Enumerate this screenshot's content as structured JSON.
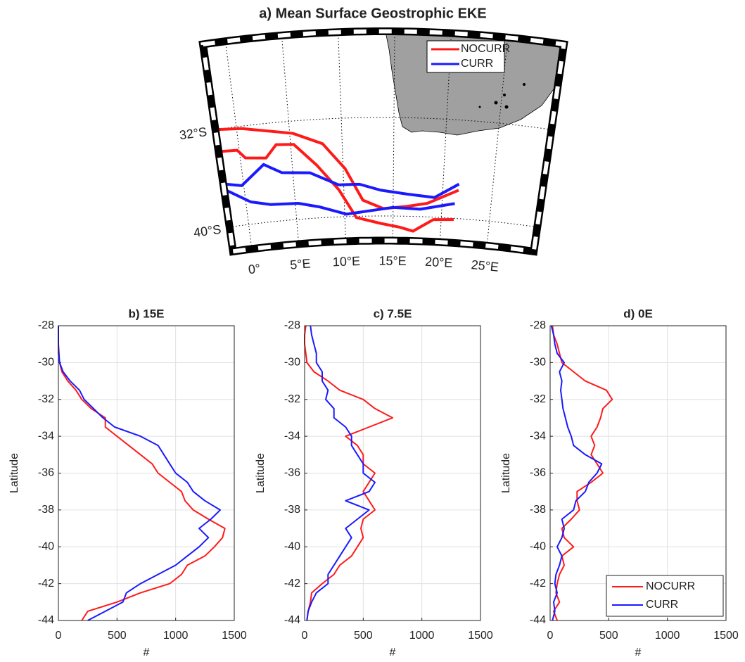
{
  "chart_data": [
    {
      "type": "map",
      "title": "a) Mean Surface Geostrophic EKE",
      "lonlim": [
        -2,
        30
      ],
      "latlim": [
        -42,
        -25
      ],
      "xticks": [
        {
          "value": 0,
          "label": "0°"
        },
        {
          "value": 5,
          "label": "5°E"
        },
        {
          "value": 10,
          "label": "10°E"
        },
        {
          "value": 15,
          "label": "15°E"
        },
        {
          "value": 20,
          "label": "20°E"
        },
        {
          "value": 25,
          "label": "25°E"
        }
      ],
      "yticks": [
        {
          "value": -32,
          "label": "32°S"
        },
        {
          "value": -40,
          "label": "40°S"
        }
      ],
      "grid": true,
      "legend": "upper right",
      "land_color": "#a0a0a0",
      "series": [
        {
          "name": "NOCURR",
          "color": "#ff1a1a",
          "tracks": [
            {
              "lon": [
                -2,
                0.5,
                5.3,
                8.1,
                10.2,
                11.9,
                14,
                16.4,
                18.5,
                21.6
              ],
              "lat": [
                -32,
                -32.2,
                -33,
                -34,
                -36.1,
                -38.7,
                -39.4,
                -39.2,
                -38.9,
                -37.7
              ]
            },
            {
              "lon": [
                -2,
                -0.2,
                0.5,
                2.5,
                3.6,
                5.3,
                7.4,
                9.5,
                11.2,
                13.7,
                15.7,
                17.1,
                19.2,
                21.3
              ],
              "lat": [
                -33.8,
                -33.9,
                -34.6,
                -34.8,
                -33.8,
                -33.9,
                -35.7,
                -37.8,
                -40.1,
                -40.6,
                -40.9,
                -41.2,
                -40.2,
                -40.1
              ]
            }
          ]
        },
        {
          "name": "CURR",
          "color": "#1a1aff",
          "tracks": [
            {
              "lon": [
                -1.8,
                -0.2,
                2.2,
                3.9,
                6.7,
                9.5,
                11.6,
                13.7,
                16.4,
                19.2,
                21.6
              ],
              "lat": [
                -36.5,
                -36.8,
                -35.3,
                -36.1,
                -36.3,
                -37.4,
                -37.4,
                -37.9,
                -38.2,
                -38.4,
                -37.2
              ]
            },
            {
              "lon": [
                -1.8,
                0.5,
                2.5,
                5.3,
                7.4,
                10.2,
                12.3,
                15,
                17.8,
                21.3
              ],
              "lat": [
                -37,
                -38.2,
                -38.6,
                -38.7,
                -39.1,
                -39.8,
                -39.6,
                -39.3,
                -39.4,
                -38.8
              ]
            }
          ]
        }
      ]
    },
    {
      "type": "line",
      "title": "b) 15E",
      "xlabel": "#",
      "ylabel": "Latitude",
      "xlim": [
        0,
        1500
      ],
      "xticks": [
        0,
        500,
        1000,
        1500
      ],
      "ylim": [
        -44,
        -28
      ],
      "yticks": [
        -28,
        -30,
        -32,
        -34,
        -36,
        -38,
        -40,
        -42,
        -44
      ],
      "grid": true,
      "y": [
        -44,
        -43.5,
        -43,
        -42.5,
        -42,
        -41.5,
        -41,
        -40.5,
        -40,
        -39.5,
        -39,
        -38.5,
        -38,
        -37.5,
        -37,
        -36.5,
        -36,
        -35.5,
        -35,
        -34.5,
        -34,
        -33.5,
        -33,
        -32.5,
        -32,
        -31.5,
        -31,
        -30.5,
        -30,
        -29.5,
        -29,
        -28.5,
        -28
      ],
      "series": [
        {
          "name": "NOCURR",
          "color": "#ff1a1a",
          "values": [
            200,
            250,
            500,
            700,
            950,
            1050,
            1100,
            1250,
            1330,
            1400,
            1420,
            1280,
            1150,
            1080,
            1050,
            950,
            850,
            800,
            700,
            600,
            500,
            400,
            400,
            280,
            200,
            150,
            80,
            30,
            10,
            0,
            0,
            0,
            0
          ]
        },
        {
          "name": "CURR",
          "color": "#1a1aff",
          "values": [
            250,
            400,
            550,
            580,
            700,
            850,
            1000,
            1100,
            1200,
            1280,
            1200,
            1300,
            1380,
            1250,
            1150,
            1100,
            1000,
            950,
            900,
            850,
            700,
            480,
            380,
            300,
            220,
            180,
            100,
            40,
            10,
            5,
            0,
            0,
            0
          ]
        }
      ]
    },
    {
      "type": "line",
      "title": "c) 7.5E",
      "xlabel": "#",
      "ylabel": "Latitude",
      "xlim": [
        0,
        1500
      ],
      "xticks": [
        0,
        500,
        1000,
        1500
      ],
      "ylim": [
        -44,
        -28
      ],
      "yticks": [
        -28,
        -30,
        -32,
        -34,
        -36,
        -38,
        -40,
        -42,
        -44
      ],
      "grid": true,
      "y": [
        -44,
        -43.5,
        -43,
        -42.5,
        -42,
        -41.5,
        -41,
        -40.5,
        -40,
        -39.5,
        -39,
        -38.5,
        -38,
        -37.5,
        -37,
        -36.5,
        -36,
        -35.5,
        -35,
        -34.5,
        -34,
        -33.5,
        -33,
        -32.5,
        -32,
        -31.5,
        -31,
        -30.5,
        -30,
        -29.5,
        -29,
        -28.5,
        -28
      ],
      "series": [
        {
          "name": "NOCURR",
          "color": "#ff1a1a",
          "values": [
            20,
            30,
            50,
            60,
            150,
            250,
            300,
            400,
            450,
            500,
            480,
            500,
            600,
            550,
            500,
            550,
            600,
            500,
            500,
            450,
            350,
            550,
            750,
            600,
            500,
            300,
            200,
            80,
            20,
            10,
            0,
            0,
            10
          ]
        },
        {
          "name": "CURR",
          "color": "#1a1aff",
          "values": [
            20,
            30,
            60,
            100,
            200,
            200,
            250,
            300,
            350,
            400,
            350,
            450,
            550,
            350,
            550,
            600,
            500,
            500,
            450,
            400,
            400,
            350,
            250,
            250,
            180,
            200,
            150,
            150,
            100,
            100,
            80,
            60,
            50
          ]
        }
      ]
    },
    {
      "type": "line",
      "title": "d) 0E",
      "xlabel": "#",
      "ylabel": "Latitude",
      "xlim": [
        0,
        1500
      ],
      "xticks": [
        0,
        500,
        1000,
        1500
      ],
      "ylim": [
        -44,
        -28
      ],
      "yticks": [
        -28,
        -30,
        -32,
        -34,
        -36,
        -38,
        -40,
        -42,
        -44
      ],
      "grid": true,
      "legend": "lower right",
      "y": [
        -44,
        -43.5,
        -43,
        -42.5,
        -42,
        -41.5,
        -41,
        -40.5,
        -40,
        -39.5,
        -39,
        -38.5,
        -38,
        -37.5,
        -37,
        -36.5,
        -36,
        -35.5,
        -35,
        -34.5,
        -34,
        -33.5,
        -33,
        -32.5,
        -32,
        -31.5,
        -31,
        -30.5,
        -30,
        -29.5,
        -29,
        -28.5,
        -28
      ],
      "series": [
        {
          "name": "NOCURR",
          "color": "#ff1a1a",
          "values": [
            60,
            30,
            80,
            50,
            60,
            80,
            120,
            100,
            200,
            120,
            100,
            180,
            250,
            230,
            230,
            350,
            450,
            400,
            350,
            380,
            350,
            400,
            430,
            450,
            530,
            480,
            300,
            200,
            100,
            80,
            60,
            30,
            20
          ]
        },
        {
          "name": "CURR",
          "color": "#1a1aff",
          "values": [
            20,
            40,
            30,
            60,
            40,
            50,
            80,
            100,
            60,
            100,
            120,
            100,
            200,
            220,
            300,
            330,
            400,
            440,
            300,
            200,
            180,
            150,
            130,
            110,
            100,
            90,
            100,
            80,
            120,
            60,
            40,
            30,
            10
          ]
        }
      ]
    }
  ]
}
